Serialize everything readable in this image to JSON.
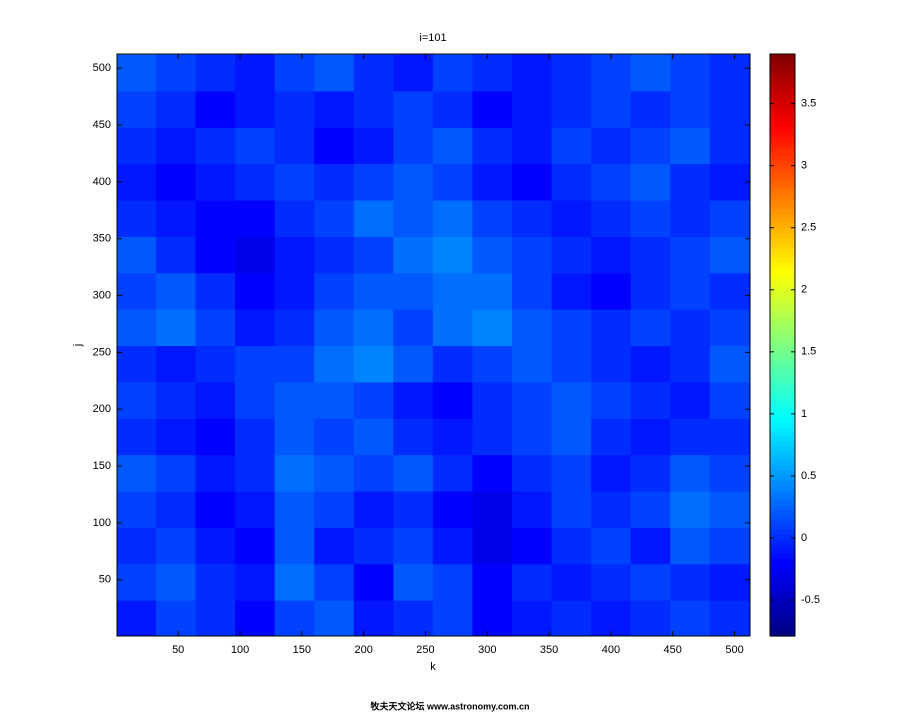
{
  "chart_data": {
    "type": "heatmap",
    "title": "i=101",
    "x_label": "k",
    "y_label": "j",
    "watermark": "牧夫天文论坛 www.astronomy.com.cn",
    "x": [
      16,
      48,
      80,
      112,
      144,
      176,
      208,
      240,
      272,
      304,
      336,
      368,
      400,
      432,
      464,
      496
    ],
    "y": [
      16,
      48,
      80,
      112,
      144,
      176,
      208,
      240,
      272,
      304,
      336,
      368,
      400,
      432,
      464,
      496
    ],
    "z": [
      [
        -0.1,
        0.1,
        0,
        -0.2,
        0.1,
        0.2,
        -0.1,
        0,
        0.1,
        -0.2,
        -0.1,
        0,
        -0.1,
        0,
        0.1,
        0
      ],
      [
        0.1,
        0.2,
        0,
        -0.1,
        0.3,
        0.1,
        -0.2,
        0.2,
        0.1,
        -0.2,
        0,
        -0.1,
        0,
        0.1,
        0,
        -0.1
      ],
      [
        0,
        0.1,
        -0.1,
        -0.2,
        0.2,
        -0.1,
        0,
        0.1,
        -0.1,
        -0.3,
        -0.2,
        0,
        0.1,
        -0.1,
        0.2,
        0.1
      ],
      [
        0.1,
        0,
        -0.2,
        -0.1,
        0.2,
        0.1,
        -0.1,
        0,
        -0.2,
        -0.3,
        -0.1,
        0.1,
        0,
        0.1,
        0.3,
        0.2
      ],
      [
        0.2,
        0.1,
        -0.1,
        0,
        0.3,
        0.2,
        0.1,
        0.2,
        0,
        -0.2,
        0,
        0.1,
        -0.1,
        0,
        0.2,
        0.1
      ],
      [
        0,
        -0.1,
        -0.2,
        0,
        0.2,
        0.1,
        0.2,
        0,
        -0.1,
        0,
        0.1,
        0.2,
        0,
        -0.1,
        0,
        0
      ],
      [
        0.1,
        0,
        -0.1,
        0.1,
        0.2,
        0.2,
        0.1,
        -0.1,
        -0.2,
        0,
        0.1,
        0.2,
        0.1,
        0,
        -0.1,
        0.1
      ],
      [
        0,
        -0.1,
        0,
        0.1,
        0.1,
        0.3,
        0.4,
        0.2,
        0,
        0.1,
        0.2,
        0.1,
        0,
        -0.1,
        0,
        0.2
      ],
      [
        0.2,
        0.3,
        0.1,
        -0.1,
        0,
        0.2,
        0.3,
        0.1,
        0.3,
        0.4,
        0.2,
        0.1,
        0,
        0.1,
        0,
        0.1
      ],
      [
        0.1,
        0.2,
        0,
        -0.2,
        -0.1,
        0.1,
        0.2,
        0.2,
        0.3,
        0.3,
        0.1,
        -0.1,
        -0.2,
        0,
        0.1,
        0
      ],
      [
        0.2,
        0,
        -0.2,
        -0.3,
        -0.1,
        0,
        0.1,
        0.3,
        0.4,
        0.2,
        0.1,
        0,
        -0.1,
        0,
        0.1,
        0.2
      ],
      [
        0,
        -0.1,
        -0.2,
        -0.2,
        0,
        0.1,
        0.3,
        0.2,
        0.3,
        0.1,
        0,
        -0.1,
        0,
        0.1,
        0,
        0.1
      ],
      [
        -0.1,
        -0.2,
        -0.1,
        0,
        0.1,
        0,
        0.1,
        0.2,
        0.1,
        -0.1,
        -0.2,
        0,
        0.1,
        0.2,
        0,
        -0.1
      ],
      [
        0,
        -0.1,
        0,
        0.1,
        0,
        -0.2,
        -0.1,
        0.1,
        0.2,
        0,
        -0.1,
        0.1,
        0,
        0.1,
        0.2,
        0
      ],
      [
        0.1,
        0,
        -0.2,
        -0.1,
        0,
        -0.1,
        0,
        0.1,
        0,
        -0.2,
        -0.1,
        0,
        0.1,
        0,
        0.1,
        0
      ],
      [
        0.2,
        0.1,
        0,
        -0.1,
        0.1,
        0.2,
        0,
        -0.1,
        0.1,
        0,
        -0.1,
        0,
        0.1,
        0.2,
        0.1,
        0
      ]
    ],
    "cell_size": 32,
    "xlim": [
      0.5,
      512.5
    ],
    "ylim": [
      0.5,
      512.5
    ],
    "xticks": [
      50,
      100,
      150,
      200,
      250,
      300,
      350,
      400,
      450,
      500
    ],
    "yticks": [
      50,
      100,
      150,
      200,
      250,
      300,
      350,
      400,
      450,
      500
    ],
    "colormap": "jet",
    "clim": [
      -0.79,
      3.9
    ],
    "cticks": [
      -0.5,
      0,
      0.5,
      1,
      1.5,
      2,
      2.5,
      3,
      3.5
    ]
  }
}
